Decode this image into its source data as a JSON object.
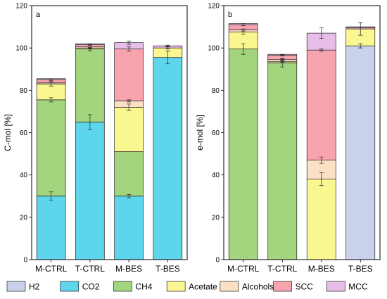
{
  "chart_data": [
    {
      "type": "bar",
      "stacked": true,
      "panel_label": "a",
      "ylabel": "C-mol [%]",
      "ylim": [
        0,
        120
      ],
      "yticks": [
        0,
        20,
        40,
        60,
        80,
        100,
        120
      ],
      "categories": [
        "M-CTRL",
        "T-CTRL",
        "M-BES",
        "T-BES"
      ],
      "series": [
        {
          "name": "H2",
          "color": "#c9d2ea",
          "values": [
            0,
            0,
            0,
            0
          ]
        },
        {
          "name": "CO2",
          "color": "#5dd6ec",
          "values": [
            30,
            65,
            30,
            95.5
          ]
        },
        {
          "name": "CH4",
          "color": "#a3d47e",
          "values": [
            45.5,
            34.5,
            21,
            0
          ]
        },
        {
          "name": "Acetate",
          "color": "#faf690",
          "values": [
            7.5,
            0.5,
            21,
            4.5
          ]
        },
        {
          "name": "Alcohols",
          "color": "#fbe0c4",
          "values": [
            0.5,
            0.5,
            3,
            0
          ]
        },
        {
          "name": "SCC",
          "color": "#f8a4ae",
          "values": [
            1.5,
            1,
            24.5,
            0
          ]
        },
        {
          "name": "MCC",
          "color": "#e6bee8",
          "values": [
            0.5,
            0.5,
            3,
            1
          ]
        }
      ],
      "errors": [
        {
          "series": "CO2",
          "values": [
            2,
            3.5,
            0.8,
            3
          ]
        },
        {
          "series": "CH4",
          "values": [
            1,
            0.8,
            0,
            0
          ]
        },
        {
          "series": "Acetate",
          "values": [
            1,
            0.3,
            1.5,
            0.5
          ]
        },
        {
          "series": "Alcohols",
          "values": [
            0,
            0,
            0.5,
            0
          ]
        },
        {
          "series": "SCC",
          "values": [
            0.5,
            0.3,
            1,
            0
          ]
        },
        {
          "series": "MCC",
          "values": [
            0,
            0,
            0.8,
            0.3
          ]
        }
      ]
    },
    {
      "type": "bar",
      "stacked": true,
      "panel_label": "b",
      "ylabel": "e-mol [%]",
      "ylim": [
        0,
        120
      ],
      "yticks": [
        0,
        20,
        40,
        60,
        80,
        100,
        120
      ],
      "categories": [
        "M-CTRL",
        "T-CTRL",
        "M-BES",
        "T-BES"
      ],
      "series": [
        {
          "name": "H2",
          "color": "#c9d2ea",
          "values": [
            0,
            0,
            0,
            101
          ]
        },
        {
          "name": "CO2",
          "color": "#5dd6ec",
          "values": [
            0,
            0,
            0,
            0
          ]
        },
        {
          "name": "CH4",
          "color": "#a3d47e",
          "values": [
            99.5,
            93,
            0,
            0
          ]
        },
        {
          "name": "Acetate",
          "color": "#faf690",
          "values": [
            8,
            0.5,
            38,
            8
          ]
        },
        {
          "name": "Alcohols",
          "color": "#fbe0c4",
          "values": [
            1,
            1,
            9,
            0
          ]
        },
        {
          "name": "SCC",
          "color": "#f8a4ae",
          "values": [
            2.5,
            2,
            52,
            0.5
          ]
        },
        {
          "name": "MCC",
          "color": "#e6bee8",
          "values": [
            0.5,
            0.5,
            8,
            0.5
          ]
        }
      ],
      "errors": [
        {
          "series": "H2",
          "values": [
            0,
            0,
            0,
            1
          ]
        },
        {
          "series": "CH4",
          "values": [
            2.5,
            2,
            0,
            0
          ]
        },
        {
          "series": "Acetate",
          "values": [
            1,
            0.3,
            3,
            3
          ]
        },
        {
          "series": "Alcohols",
          "values": [
            0.5,
            0.3,
            1.5,
            0
          ]
        },
        {
          "series": "SCC",
          "values": [
            0.5,
            0.3,
            0.5,
            0
          ]
        },
        {
          "series": "MCC",
          "values": [
            0,
            0,
            2.5,
            0
          ]
        }
      ]
    }
  ],
  "legend": [
    {
      "label": "H2",
      "color": "#c9d2ea"
    },
    {
      "label": "CO2",
      "color": "#5dd6ec"
    },
    {
      "label": "CH4",
      "color": "#a3d47e"
    },
    {
      "label": "Acetate",
      "color": "#faf690"
    },
    {
      "label": "Alcohols",
      "color": "#fbe0c4"
    },
    {
      "label": "SCC",
      "color": "#f8a4ae"
    },
    {
      "label": "MCC",
      "color": "#e6bee8"
    }
  ]
}
